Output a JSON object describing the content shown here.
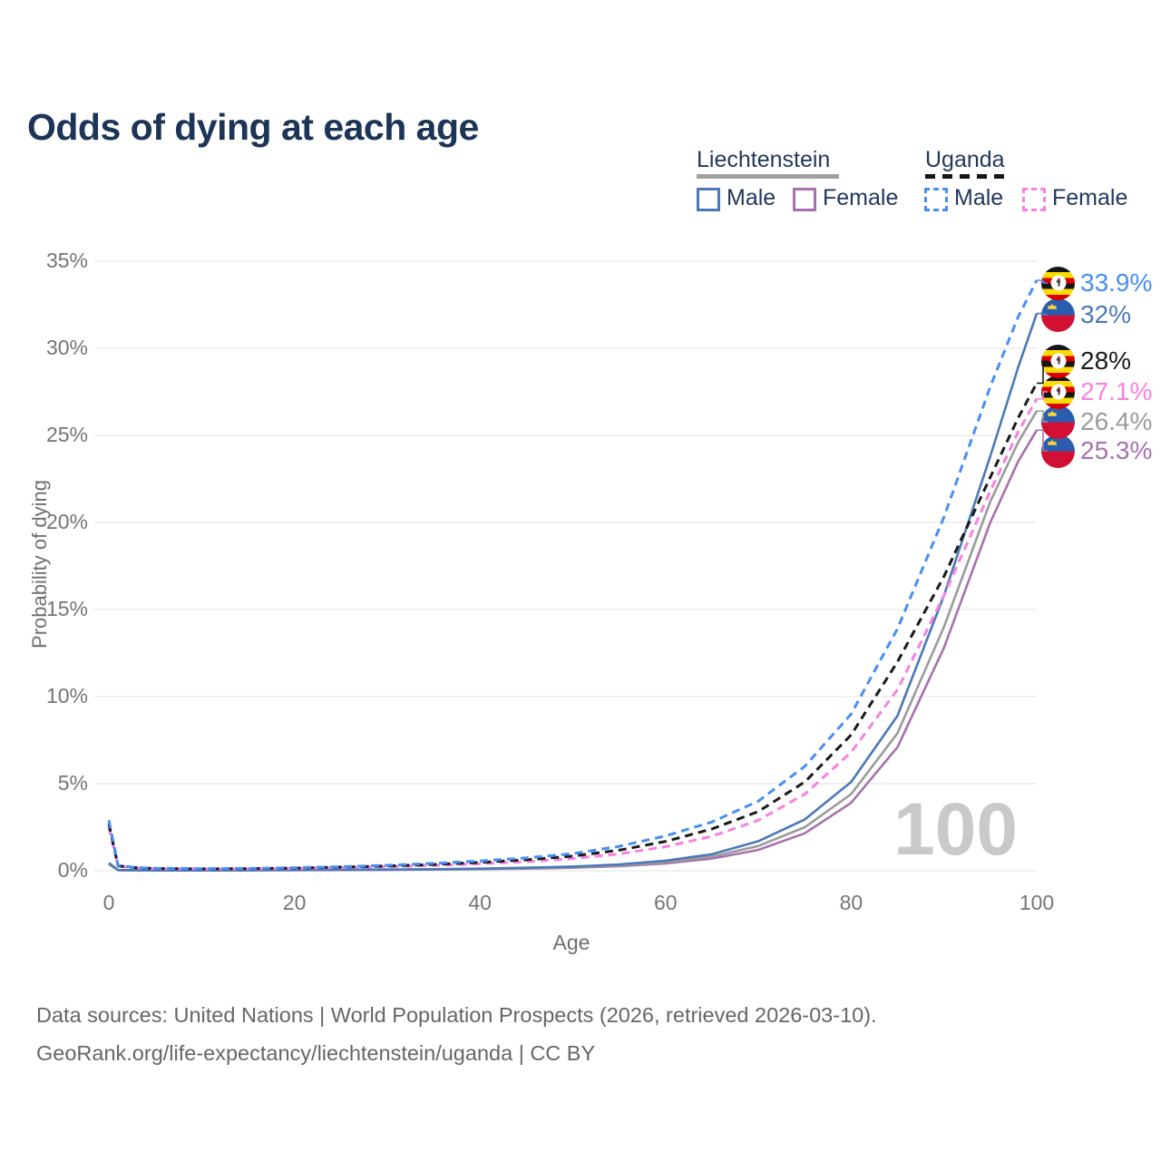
{
  "title": "Odds of dying at each age",
  "legend": {
    "groups": [
      {
        "label": "Liechtenstein",
        "line_style": "solid",
        "line_color": "#a0a0a0",
        "items": [
          {
            "label": "Male",
            "color": "#4b79b7",
            "dashed": false
          },
          {
            "label": "Female",
            "color": "#a771ae",
            "dashed": false
          }
        ]
      },
      {
        "label": "Uganda",
        "line_style": "dashed",
        "line_color": "#161616",
        "items": [
          {
            "label": "Male",
            "color": "#478ef5",
            "dashed": true
          },
          {
            "label": "Female",
            "color": "#f980e1",
            "dashed": true
          }
        ]
      }
    ]
  },
  "chart_data": {
    "type": "line",
    "title": "Odds of dying at each age",
    "xlabel": "Age",
    "ylabel": "Probability of dying",
    "xlim": [
      0,
      100
    ],
    "ylim_pct": [
      0,
      35
    ],
    "grid": "horizontal",
    "watermark": "100",
    "x_ticks": [
      0,
      20,
      40,
      60,
      80,
      100
    ],
    "y_ticks": [
      {
        "value": 0,
        "label": "0%"
      },
      {
        "value": 5,
        "label": "5%"
      },
      {
        "value": 10,
        "label": "10%"
      },
      {
        "value": 15,
        "label": "15%"
      },
      {
        "value": 20,
        "label": "20%"
      },
      {
        "value": 25,
        "label": "25%"
      },
      {
        "value": 30,
        "label": "30%"
      },
      {
        "value": 35,
        "label": "35%"
      }
    ],
    "series": [
      {
        "name": "Liechtenstein Female",
        "country": "Liechtenstein",
        "sex": "Female",
        "color": "#a771ae",
        "dashed": false,
        "flag": "liechtenstein",
        "end_label": "25.3%",
        "end_value_pct": 25.3,
        "points": [
          [
            0,
            0.38
          ],
          [
            1,
            0.03
          ],
          [
            5,
            0.015
          ],
          [
            10,
            0.015
          ],
          [
            15,
            0.02
          ],
          [
            20,
            0.03
          ],
          [
            25,
            0.04
          ],
          [
            30,
            0.05
          ],
          [
            35,
            0.07
          ],
          [
            40,
            0.09
          ],
          [
            45,
            0.12
          ],
          [
            50,
            0.17
          ],
          [
            55,
            0.26
          ],
          [
            60,
            0.42
          ],
          [
            65,
            0.7
          ],
          [
            70,
            1.2
          ],
          [
            75,
            2.15
          ],
          [
            80,
            3.9
          ],
          [
            85,
            7.1
          ],
          [
            90,
            12.8
          ],
          [
            95,
            20.0
          ],
          [
            98,
            23.5
          ],
          [
            100,
            25.3
          ]
        ]
      },
      {
        "name": "Liechtenstein Both sexes",
        "country": "Liechtenstein",
        "sex": "Both",
        "color": "#9b9b9b",
        "dashed": false,
        "flag": "liechtenstein",
        "end_label": "26.4%",
        "end_value_pct": 26.4,
        "points": [
          [
            0,
            0.42
          ],
          [
            1,
            0.035
          ],
          [
            5,
            0.018
          ],
          [
            10,
            0.018
          ],
          [
            15,
            0.025
          ],
          [
            20,
            0.04
          ],
          [
            25,
            0.05
          ],
          [
            30,
            0.06
          ],
          [
            35,
            0.08
          ],
          [
            40,
            0.1
          ],
          [
            45,
            0.14
          ],
          [
            50,
            0.2
          ],
          [
            55,
            0.3
          ],
          [
            60,
            0.49
          ],
          [
            65,
            0.81
          ],
          [
            70,
            1.42
          ],
          [
            75,
            2.5
          ],
          [
            80,
            4.4
          ],
          [
            85,
            7.9
          ],
          [
            90,
            14.0
          ],
          [
            95,
            21.2
          ],
          [
            98,
            24.6
          ],
          [
            100,
            26.4
          ]
        ]
      },
      {
        "name": "Liechtenstein Male",
        "country": "Liechtenstein",
        "sex": "Male",
        "color": "#4b79b7",
        "dashed": false,
        "flag": "liechtenstein",
        "end_label": "32%",
        "end_value_pct": 32,
        "points": [
          [
            0,
            0.45
          ],
          [
            1,
            0.04
          ],
          [
            5,
            0.02
          ],
          [
            10,
            0.02
          ],
          [
            15,
            0.03
          ],
          [
            20,
            0.05
          ],
          [
            25,
            0.06
          ],
          [
            30,
            0.07
          ],
          [
            35,
            0.09
          ],
          [
            40,
            0.12
          ],
          [
            45,
            0.17
          ],
          [
            50,
            0.24
          ],
          [
            55,
            0.36
          ],
          [
            60,
            0.58
          ],
          [
            65,
            0.95
          ],
          [
            70,
            1.7
          ],
          [
            75,
            2.95
          ],
          [
            80,
            5.1
          ],
          [
            85,
            8.9
          ],
          [
            90,
            15.8
          ],
          [
            95,
            23.8
          ],
          [
            98,
            28.9
          ],
          [
            100,
            32.0
          ]
        ]
      },
      {
        "name": "Uganda Female",
        "country": "Uganda",
        "sex": "Female",
        "color": "#f980e1",
        "dashed": true,
        "flag": "uganda",
        "end_label": "27.1%",
        "end_value_pct": 27.1,
        "points": [
          [
            0,
            2.5
          ],
          [
            1,
            0.26
          ],
          [
            3,
            0.16
          ],
          [
            5,
            0.12
          ],
          [
            10,
            0.1
          ],
          [
            15,
            0.11
          ],
          [
            20,
            0.13
          ],
          [
            25,
            0.18
          ],
          [
            30,
            0.23
          ],
          [
            35,
            0.3
          ],
          [
            40,
            0.4
          ],
          [
            45,
            0.52
          ],
          [
            50,
            0.7
          ],
          [
            55,
            0.97
          ],
          [
            60,
            1.38
          ],
          [
            65,
            1.98
          ],
          [
            70,
            2.9
          ],
          [
            75,
            4.4
          ],
          [
            80,
            6.8
          ],
          [
            85,
            10.4
          ],
          [
            90,
            15.8
          ],
          [
            95,
            21.8
          ],
          [
            98,
            25.2
          ],
          [
            100,
            27.1
          ]
        ]
      },
      {
        "name": "Uganda Both sexes",
        "country": "Uganda",
        "sex": "Both",
        "color": "#1a1a1a",
        "dashed": true,
        "flag": "uganda",
        "end_label": "28%",
        "end_value_pct": 28,
        "points": [
          [
            0,
            2.7
          ],
          [
            1,
            0.28
          ],
          [
            3,
            0.17
          ],
          [
            5,
            0.13
          ],
          [
            10,
            0.11
          ],
          [
            15,
            0.12
          ],
          [
            20,
            0.15
          ],
          [
            25,
            0.21
          ],
          [
            30,
            0.27
          ],
          [
            35,
            0.36
          ],
          [
            40,
            0.48
          ],
          [
            45,
            0.63
          ],
          [
            50,
            0.84
          ],
          [
            55,
            1.18
          ],
          [
            60,
            1.68
          ],
          [
            65,
            2.4
          ],
          [
            70,
            3.4
          ],
          [
            75,
            5.1
          ],
          [
            80,
            7.8
          ],
          [
            85,
            12.0
          ],
          [
            90,
            16.9
          ],
          [
            95,
            22.6
          ],
          [
            98,
            26.0
          ],
          [
            100,
            28.0
          ]
        ]
      },
      {
        "name": "Uganda Male",
        "country": "Uganda",
        "sex": "Male",
        "color": "#478ef5",
        "dashed": true,
        "flag": "uganda",
        "end_label": "33.9%",
        "end_value_pct": 33.9,
        "points": [
          [
            0,
            2.9
          ],
          [
            1,
            0.3
          ],
          [
            3,
            0.18
          ],
          [
            5,
            0.14
          ],
          [
            10,
            0.12
          ],
          [
            15,
            0.13
          ],
          [
            20,
            0.17
          ],
          [
            25,
            0.23
          ],
          [
            30,
            0.31
          ],
          [
            35,
            0.42
          ],
          [
            40,
            0.56
          ],
          [
            45,
            0.74
          ],
          [
            50,
            0.98
          ],
          [
            55,
            1.4
          ],
          [
            60,
            2.0
          ],
          [
            65,
            2.8
          ],
          [
            70,
            4.0
          ],
          [
            75,
            6.0
          ],
          [
            80,
            9.0
          ],
          [
            85,
            13.9
          ],
          [
            90,
            20.3
          ],
          [
            95,
            27.8
          ],
          [
            98,
            31.8
          ],
          [
            100,
            33.9
          ]
        ]
      }
    ],
    "legend_position": "top-right"
  },
  "footer": {
    "line1": "Data sources: United Nations | World Population Prospects (2026, retrieved 2026-03-10).",
    "line2": "GeoRank.org/life-expectancy/liechtenstein/uganda | CC BY"
  }
}
